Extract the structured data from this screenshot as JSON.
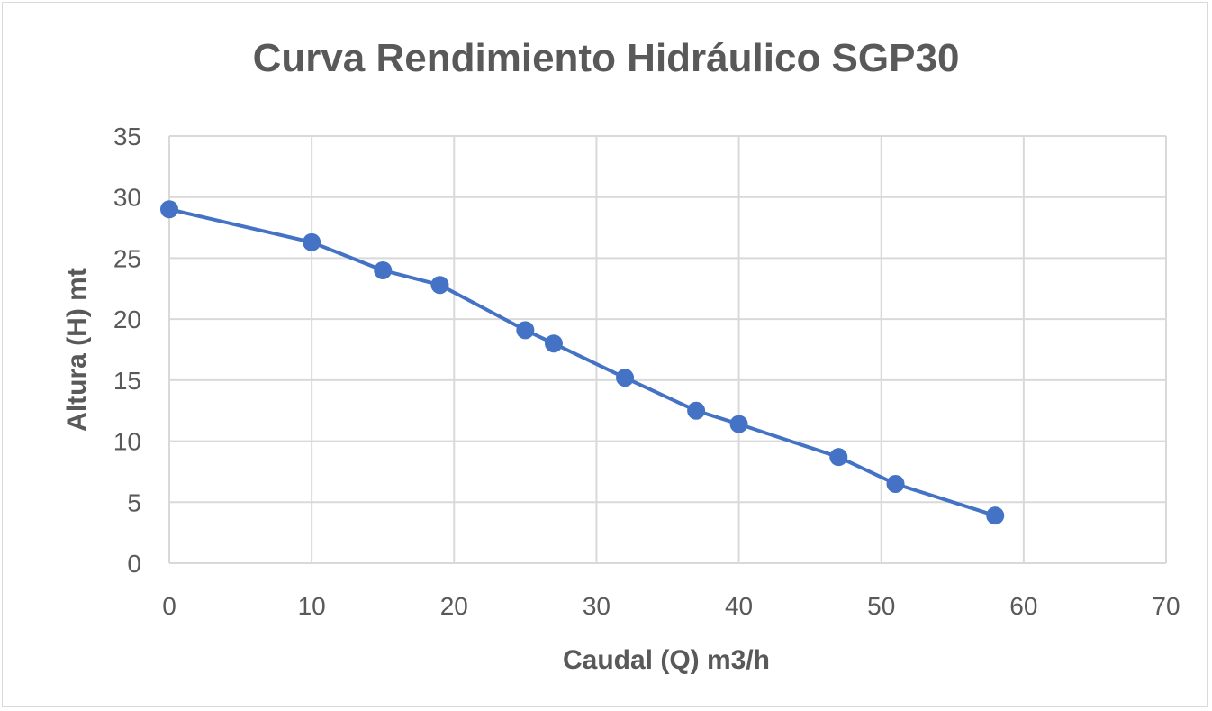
{
  "chart_data": {
    "type": "scatter",
    "title": "Curva Rendimiento Hidráulico SGP30",
    "xlabel": "Caudal (Q) m3/h",
    "ylabel": "Altura (H) mt",
    "xlim": [
      0,
      70
    ],
    "ylim": [
      0,
      35
    ],
    "xticks": [
      0,
      10,
      20,
      30,
      40,
      50,
      60,
      70
    ],
    "yticks": [
      0,
      5,
      10,
      15,
      20,
      25,
      30,
      35
    ],
    "grid": true,
    "connected": true,
    "series": [
      {
        "color": "#4472c4",
        "points": [
          {
            "x": 0,
            "y": 29
          },
          {
            "x": 10,
            "y": 26.3
          },
          {
            "x": 15,
            "y": 24
          },
          {
            "x": 19,
            "y": 22.8
          },
          {
            "x": 25,
            "y": 19.1
          },
          {
            "x": 27,
            "y": 18
          },
          {
            "x": 32,
            "y": 15.2
          },
          {
            "x": 37,
            "y": 12.5
          },
          {
            "x": 40,
            "y": 11.4
          },
          {
            "x": 47,
            "y": 8.7
          },
          {
            "x": 51,
            "y": 6.5
          },
          {
            "x": 58,
            "y": 3.9
          }
        ]
      }
    ]
  }
}
